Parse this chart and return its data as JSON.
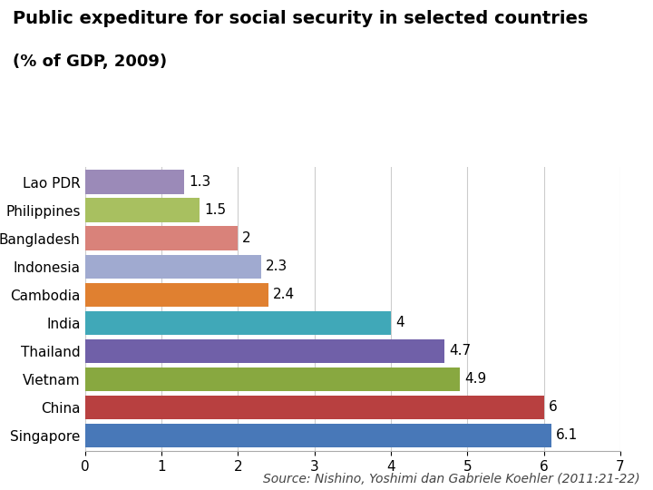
{
  "title_line1": "Public expediture for social security in selected countries",
  "title_line2": "(% of GDP, 2009)",
  "source": "Source: Nishino, Yoshimi dan Gabriele Koehler (2011:21-22)",
  "countries": [
    "Singapore",
    "China",
    "Vietnam",
    "Thailand",
    "India",
    "Cambodia",
    "Indonesia",
    "Bangladesh",
    "Philippines",
    "Lao PDR"
  ],
  "values": [
    6.1,
    6.0,
    4.9,
    4.7,
    4.0,
    2.4,
    2.3,
    2.0,
    1.5,
    1.3
  ],
  "colors": [
    "#4878b8",
    "#b84040",
    "#88a840",
    "#7060a8",
    "#40a8b8",
    "#e08030",
    "#a0aad0",
    "#d9827a",
    "#a8c060",
    "#9b8ab8"
  ],
  "xlim": [
    0,
    7
  ],
  "xticks": [
    0,
    1,
    2,
    3,
    4,
    5,
    6,
    7
  ],
  "value_labels": [
    "6.1",
    "6",
    "4.9",
    "4.7",
    "4",
    "2.4",
    "2.3",
    "2",
    "1.5",
    "1.3"
  ],
  "background_color": "#ffffff",
  "bar_height": 0.85,
  "title_fontsize": 14,
  "subtitle_fontsize": 13,
  "label_fontsize": 11,
  "tick_fontsize": 11,
  "source_fontsize": 10
}
